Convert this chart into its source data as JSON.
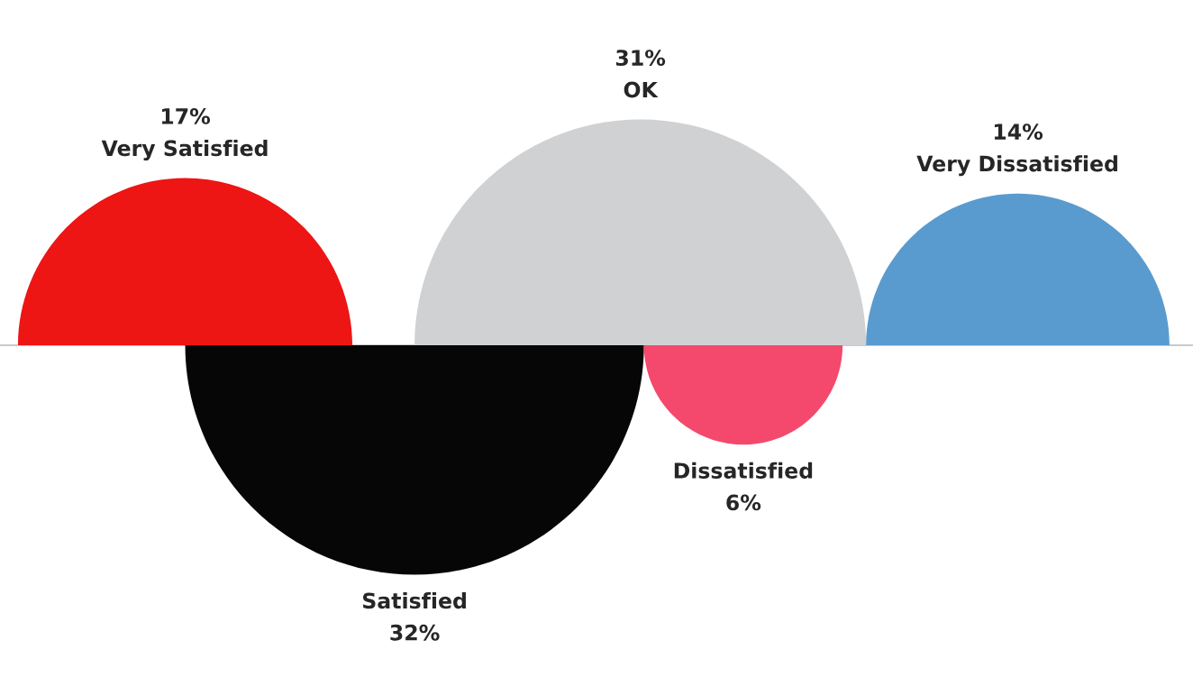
{
  "chart_data": {
    "type": "other",
    "categories": [
      "Very Satisfied",
      "Satisfied",
      "OK",
      "Dissatisfied",
      "Very Dissatisfied"
    ],
    "values": [
      17,
      32,
      31,
      6,
      14
    ],
    "colors": [
      "#ee1515",
      "#060606",
      "#d0d1d3",
      "#f4496c",
      "#5a9bcf"
    ],
    "value_labels": [
      "17%",
      "32%",
      "31%",
      "6%",
      "14%"
    ]
  }
}
